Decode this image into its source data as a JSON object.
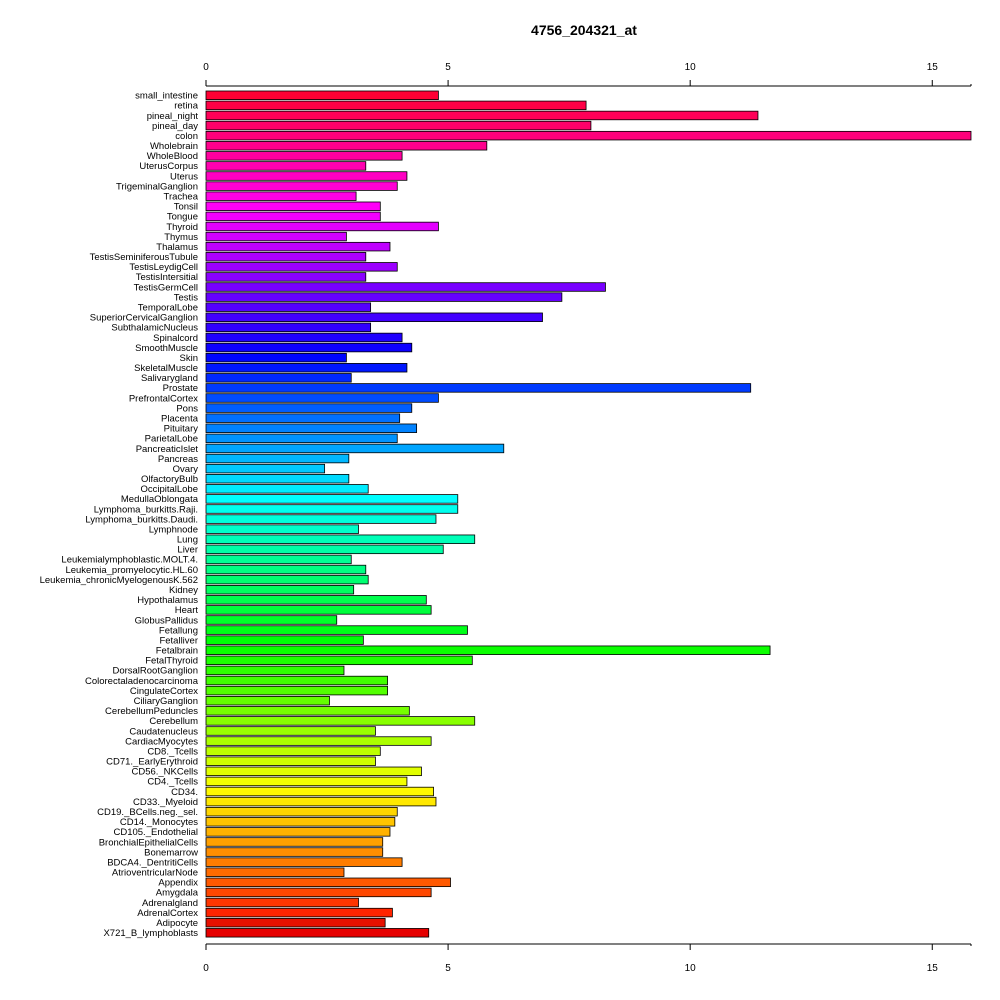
{
  "chart_data": {
    "type": "bar",
    "orientation": "horizontal",
    "title": "4756_204321_at",
    "xlim": [
      0,
      15.8
    ],
    "xticks": [
      0,
      5,
      10,
      15
    ],
    "xtick_labels": [
      "0",
      "5",
      "10",
      "15"
    ],
    "axis_positions": [
      "top",
      "bottom"
    ],
    "grid": false,
    "legend": "none",
    "color_scheme": "rainbow (red → yellow → green → cyan → blue → magenta → red, bottom to top)",
    "categories": [
      "small_intestine",
      "retina",
      "pineal_night",
      "pineal_day",
      "colon",
      "Wholebrain",
      "WholeBlood",
      "UterusCorpus",
      "Uterus",
      "TrigeminalGanglion",
      "Trachea",
      "Tonsil",
      "Tongue",
      "Thyroid",
      "Thymus",
      "Thalamus",
      "TestisSeminiferousTubule",
      "TestisLeydigCell",
      "TestisIntersitial",
      "TestisGermCell",
      "Testis",
      "TemporalLobe",
      "SuperiorCervicalGanglion",
      "SubthalamicNucleus",
      "Spinalcord",
      "SmoothMuscle",
      "Skin",
      "SkeletalMuscle",
      "Salivarygland",
      "Prostate",
      "PrefrontalCortex",
      "Pons",
      "Placenta",
      "Pituitary",
      "ParietalLobe",
      "PancreaticIslet",
      "Pancreas",
      "Ovary",
      "OlfactoryBulb",
      "OccipitalLobe",
      "MedullaOblongata",
      "Lymphoma_burkitts.Raji.",
      "Lymphoma_burkitts.Daudi.",
      "Lymphnode",
      "Lung",
      "Liver",
      "Leukemialymphoblastic.MOLT.4.",
      "Leukemia_promyelocytic.HL.60",
      "Leukemia_chronicMyelogenousK.562",
      "Kidney",
      "Hypothalamus",
      "Heart",
      "GlobusPallidus",
      "Fetallung",
      "Fetalliver",
      "Fetalbrain",
      "FetalThyroid",
      "DorsalRootGanglion",
      "Colorectaladenocarcinoma",
      "CingulateCortex",
      "CiliaryGanglion",
      "CerebellumPeduncles",
      "Cerebellum",
      "Caudatenucleus",
      "CardiacMyocytes",
      "CD8._Tcells",
      "CD71._EarlyErythroid",
      "CD56._NKCells",
      "CD4._Tcells",
      "CD34.",
      "CD33._Myeloid",
      "CD19._BCells.neg._sel.",
      "CD14._Monocytes",
      "CD105._Endothelial",
      "BronchialEpithelialCells",
      "Bonemarrow",
      "BDCA4._DentritiCells",
      "AtrioventricularNode",
      "Appendix",
      "Amygdala",
      "Adrenalgland",
      "AdrenalCortex",
      "Adipocyte",
      "X721_B_lymphoblasts"
    ],
    "values": [
      4.8,
      7.85,
      11.4,
      7.95,
      15.8,
      5.8,
      4.05,
      3.3,
      4.15,
      3.95,
      3.1,
      3.6,
      3.6,
      4.8,
      2.9,
      3.8,
      3.3,
      3.95,
      3.3,
      8.25,
      7.35,
      3.4,
      6.95,
      3.4,
      4.05,
      4.25,
      2.9,
      4.15,
      3.0,
      11.25,
      4.8,
      4.25,
      4.0,
      4.35,
      3.95,
      6.15,
      2.95,
      2.45,
      2.95,
      3.35,
      5.2,
      5.2,
      4.75,
      3.15,
      5.55,
      4.9,
      3.0,
      3.3,
      3.35,
      3.05,
      4.55,
      4.65,
      2.7,
      5.4,
      3.25,
      11.65,
      5.5,
      2.85,
      3.75,
      3.75,
      2.55,
      4.2,
      5.55,
      3.5,
      4.65,
      3.6,
      3.5,
      4.45,
      4.15,
      4.7,
      4.75,
      3.95,
      3.9,
      3.8,
      3.65,
      3.65,
      4.05,
      2.85,
      5.05,
      4.65,
      3.15,
      3.85,
      3.7,
      4.6
    ]
  }
}
